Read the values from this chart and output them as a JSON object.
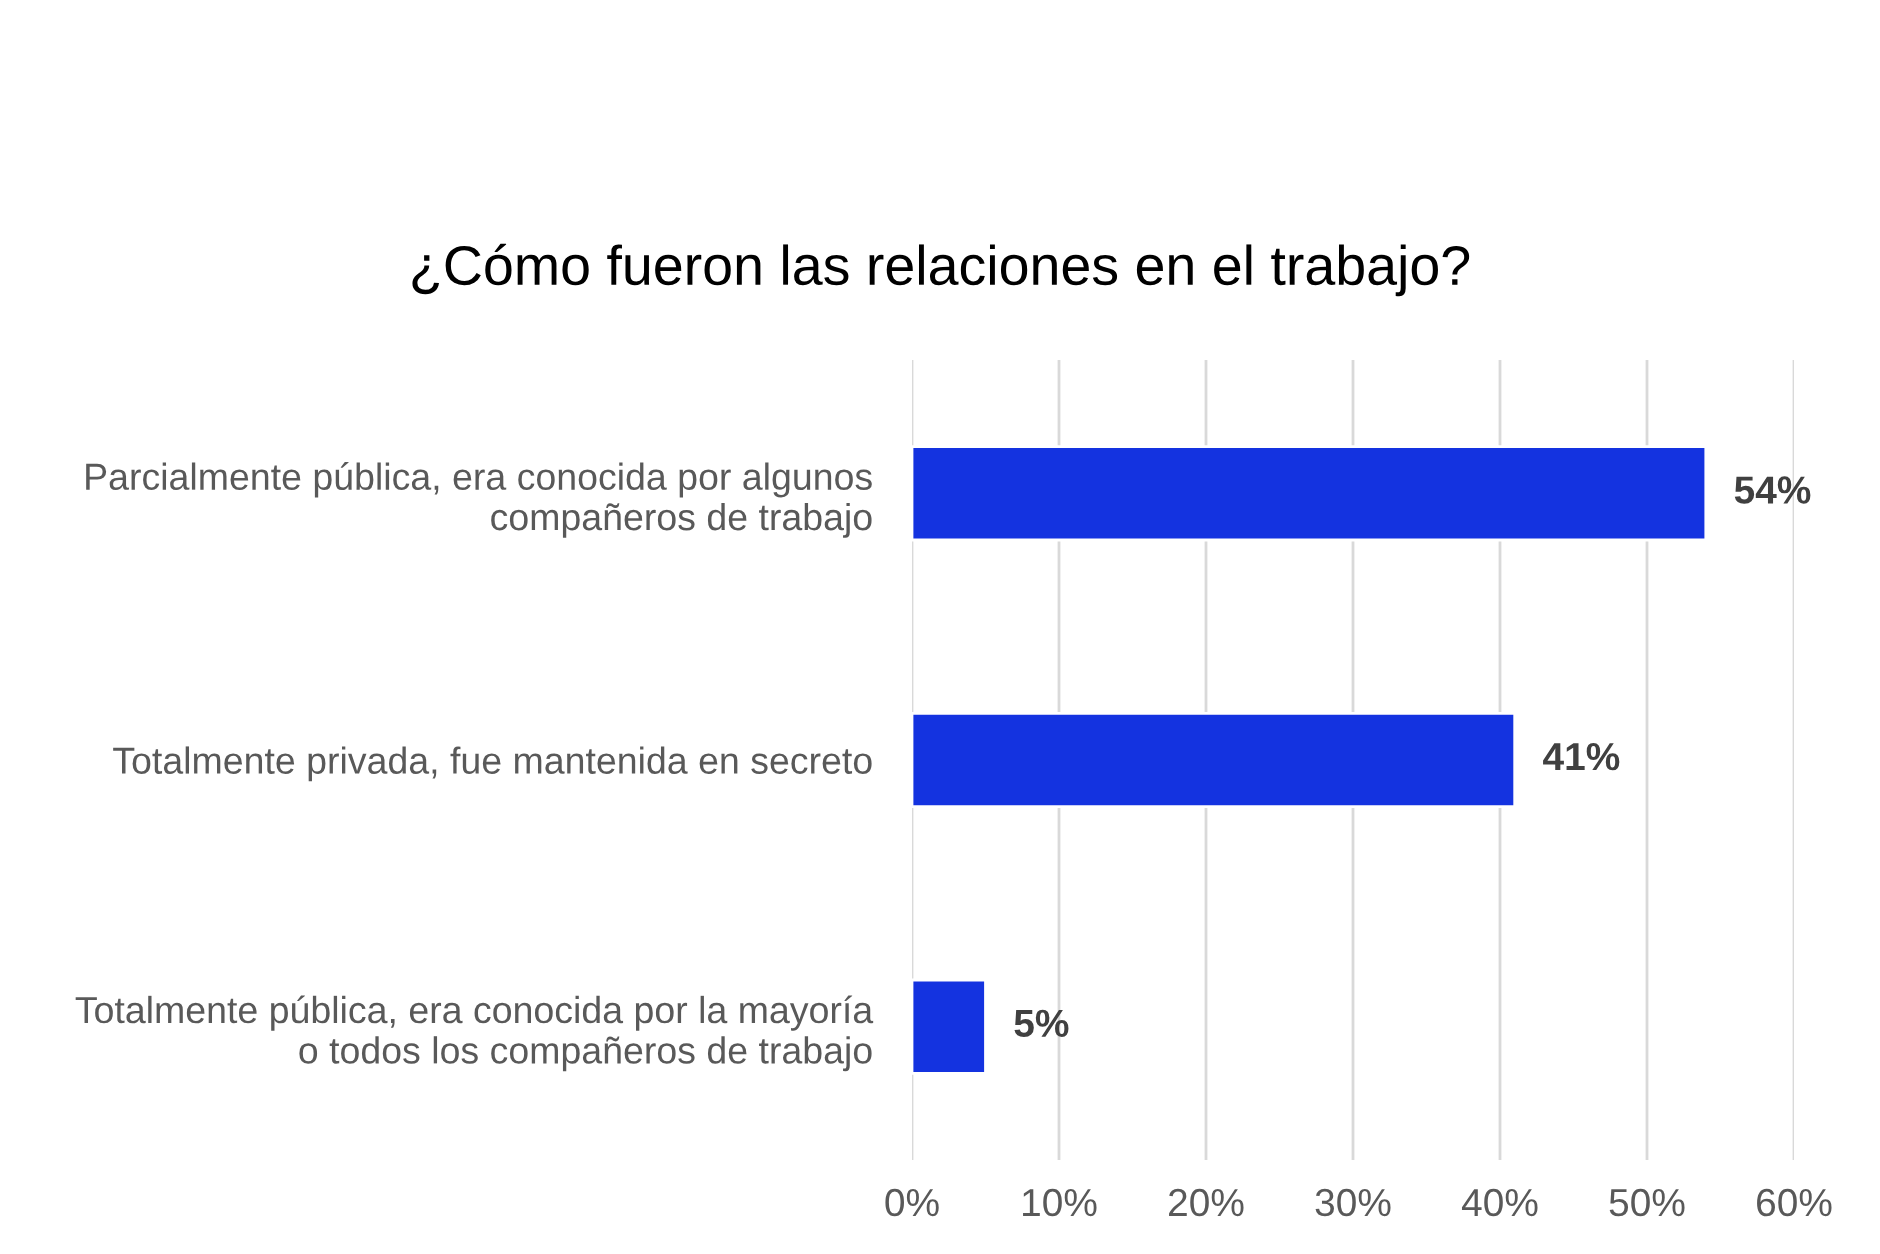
{
  "chart_data": {
    "type": "bar",
    "orientation": "horizontal",
    "title": "¿Cómo fueron las relaciones en el trabajo?",
    "categories": [
      "Parcialmente pública, era conocida por algunos\ncompañeros de trabajo",
      "Totalmente privada, fue mantenida en secreto",
      "Totalmente pública, era conocida por la mayoría\no todos los compañeros de trabajo"
    ],
    "values": [
      54,
      41,
      5
    ],
    "color": "#1433e0",
    "value_labels": [
      "54%",
      "41%",
      "5%"
    ],
    "xlim": [
      0,
      60
    ],
    "xticks": [
      {
        "value": 0,
        "label": "0%"
      },
      {
        "value": 10,
        "label": "10%"
      },
      {
        "value": 20,
        "label": "20%"
      },
      {
        "value": 30,
        "label": "30%"
      },
      {
        "value": 40,
        "label": "40%"
      },
      {
        "value": 50,
        "label": "50%"
      },
      {
        "value": 60,
        "label": "60%"
      }
    ],
    "grid": "x",
    "legend": false
  }
}
